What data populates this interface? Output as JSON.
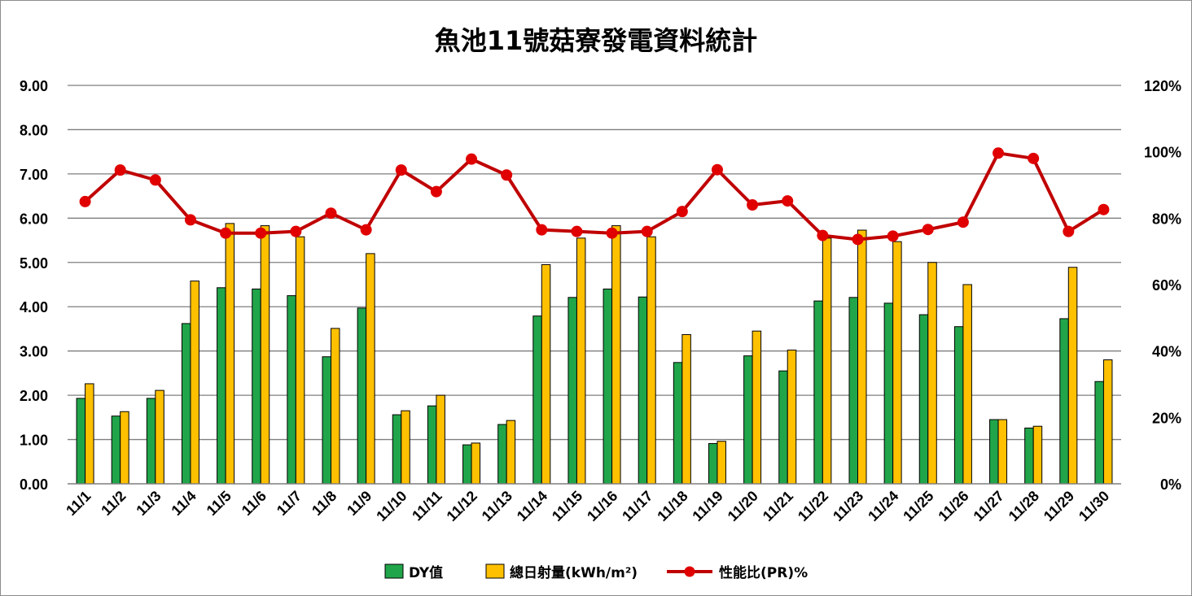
{
  "chart_data": {
    "type": "bar",
    "title": "魚池11號菇寮發電資料統計",
    "categories": [
      "11/1",
      "11/2",
      "11/3",
      "11/4",
      "11/5",
      "11/6",
      "11/7",
      "11/8",
      "11/9",
      "11/10",
      "11/11",
      "11/12",
      "11/13",
      "11/14",
      "11/15",
      "11/16",
      "11/17",
      "11/18",
      "11/19",
      "11/20",
      "11/21",
      "11/22",
      "11/23",
      "11/24",
      "11/25",
      "11/26",
      "11/27",
      "11/28",
      "11/29",
      "11/30"
    ],
    "y_left": {
      "min": 0,
      "max": 9,
      "step": 1,
      "tick_labels": [
        "0.00",
        "1.00",
        "2.00",
        "3.00",
        "4.00",
        "5.00",
        "6.00",
        "7.00",
        "8.00",
        "9.00"
      ]
    },
    "y_right": {
      "min": 0,
      "max": 120,
      "step": 20,
      "tick_labels": [
        "0%",
        "20%",
        "40%",
        "60%",
        "80%",
        "100%",
        "120%"
      ]
    },
    "grid": true,
    "legend_position": "bottom",
    "series": [
      {
        "name": "DY值",
        "type": "bar",
        "axis": "left",
        "color": "#21a54a",
        "values": [
          1.93,
          1.53,
          1.93,
          3.62,
          4.43,
          4.4,
          4.25,
          2.87,
          3.97,
          1.56,
          1.76,
          0.88,
          1.34,
          3.79,
          4.21,
          4.4,
          4.22,
          2.74,
          0.91,
          2.89,
          2.55,
          4.13,
          4.21,
          4.08,
          3.82,
          3.55,
          1.45,
          1.26,
          3.73,
          2.31
        ]
      },
      {
        "name": "總日射量(kWh/m²)",
        "type": "bar",
        "axis": "left",
        "color": "#ffc000",
        "values": [
          2.26,
          1.63,
          2.11,
          4.58,
          5.88,
          5.83,
          5.58,
          3.51,
          5.2,
          1.65,
          2.0,
          0.92,
          1.43,
          4.95,
          5.55,
          5.83,
          5.58,
          3.37,
          0.96,
          3.45,
          3.02,
          5.55,
          5.73,
          5.47,
          5.0,
          4.5,
          1.45,
          1.3,
          4.89,
          2.8
        ]
      },
      {
        "name": "性能比(PR)%",
        "type": "line",
        "axis": "right",
        "color": "#c00000",
        "values": [
          85,
          94.5,
          91.5,
          79.5,
          75.5,
          75.5,
          76,
          81.5,
          76.5,
          94.5,
          88,
          97.8,
          93,
          76.5,
          76,
          75.5,
          76,
          82,
          94.6,
          84,
          85.2,
          74.8,
          73.6,
          74.6,
          76.6,
          78.8,
          99.6,
          98,
          76,
          82.6
        ]
      }
    ]
  }
}
